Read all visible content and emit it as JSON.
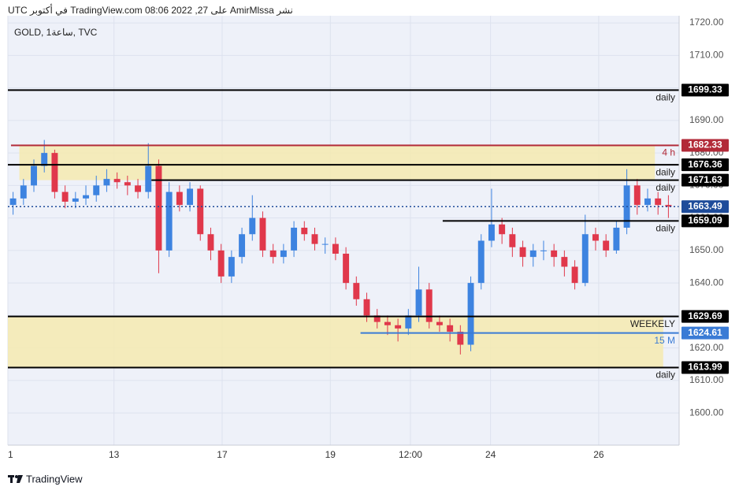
{
  "header": {
    "text": "نشر AmirMlssa على TradingView.com 08:06 2022 ,27 في أكتوبر UTC"
  },
  "footer": {
    "brand": "TradingView"
  },
  "chart_data": {
    "type": "candlestick",
    "title": "GOLD, 1ساعة, TVC",
    "up_color": "#3d83e0",
    "down_color": "#e0384b",
    "xlim": [
      0,
      64
    ],
    "xticks": [
      {
        "value": 0,
        "label": "1"
      },
      {
        "value": 10.2,
        "label": "13"
      },
      {
        "value": 20.6,
        "label": "17"
      },
      {
        "value": 31.0,
        "label": "19"
      },
      {
        "value": 38.7,
        "label": "12:00"
      },
      {
        "value": 46.4,
        "label": "24"
      },
      {
        "value": 56.8,
        "label": "26"
      }
    ],
    "ylim": [
      1590.1,
      1722.2
    ],
    "yticks": [
      {
        "value": 1720,
        "label": "1720.00"
      },
      {
        "value": 1710,
        "label": "1710.00"
      },
      {
        "value": 1700,
        "label": "1700.00"
      },
      {
        "value": 1690,
        "label": "1690.00"
      },
      {
        "value": 1680,
        "label": "1680.00"
      },
      {
        "value": 1670,
        "label": "1670.00"
      },
      {
        "value": 1660,
        "label": "1660.00"
      },
      {
        "value": 1650,
        "label": "1650.00"
      },
      {
        "value": 1640,
        "label": "1640.00"
      },
      {
        "value": 1630,
        "label": "1630.00"
      },
      {
        "value": 1620,
        "label": "1620.00"
      },
      {
        "value": 1610,
        "label": "1610.00"
      },
      {
        "value": 1600,
        "label": "1600.00"
      }
    ],
    "grid": true,
    "zones": [
      {
        "from": 1671.63,
        "to": 1682.33,
        "x": [
          1.1,
          62.2
        ],
        "color": "#f5eab0"
      },
      {
        "from": 1613.99,
        "to": 1629.69,
        "x": [
          0,
          63
        ],
        "color": "#f5eab0"
      }
    ],
    "levels": [
      {
        "value": 1699.33,
        "note": "daily",
        "color": "#000000",
        "start": 0
      },
      {
        "value": 1682.33,
        "note": "4 h",
        "color": "#b22a38",
        "start": 0.3
      },
      {
        "value": 1676.36,
        "note": "daily",
        "color": "#000000",
        "start": 0
      },
      {
        "value": 1671.63,
        "note": "daily",
        "color": "#000000",
        "start": 13.8
      },
      {
        "value": 1663.49,
        "color": "#1e4c9a",
        "start": 0,
        "dashed": true
      },
      {
        "value": 1659.09,
        "note": "daily",
        "color": "#000000",
        "start": 41.8
      },
      {
        "value": 1629.69,
        "note": "WEEKELY",
        "color": "#000000",
        "start": 0
      },
      {
        "value": 1624.61,
        "note": "15 M",
        "color": "#3a7bd5",
        "start": 33.9
      },
      {
        "value": 1613.99,
        "note": "daily",
        "color": "#000000",
        "start": 0
      }
    ],
    "candles": [
      [
        1664,
        1668,
        1661,
        1666
      ],
      [
        1666,
        1672,
        1664,
        1670
      ],
      [
        1670,
        1678,
        1668,
        1676
      ],
      [
        1676,
        1684,
        1674,
        1680
      ],
      [
        1680,
        1681,
        1666,
        1668
      ],
      [
        1668,
        1670,
        1663,
        1665
      ],
      [
        1665,
        1668,
        1663,
        1666
      ],
      [
        1666,
        1670,
        1664,
        1667
      ],
      [
        1667,
        1673,
        1665,
        1670
      ],
      [
        1670,
        1675,
        1668,
        1672
      ],
      [
        1672,
        1674,
        1669,
        1671
      ],
      [
        1671,
        1673,
        1667,
        1670
      ],
      [
        1670,
        1672,
        1666,
        1668
      ],
      [
        1668,
        1683,
        1666,
        1676
      ],
      [
        1676,
        1678,
        1643,
        1650
      ],
      [
        1650,
        1671,
        1648,
        1668
      ],
      [
        1668,
        1670,
        1662,
        1664
      ],
      [
        1664,
        1671,
        1662,
        1669
      ],
      [
        1669,
        1670,
        1653,
        1655
      ],
      [
        1655,
        1657,
        1647,
        1650
      ],
      [
        1650,
        1652,
        1640,
        1642
      ],
      [
        1642,
        1650,
        1640,
        1648
      ],
      [
        1648,
        1657,
        1646,
        1655
      ],
      [
        1655,
        1667,
        1653,
        1660
      ],
      [
        1660,
        1662,
        1648,
        1650
      ],
      [
        1650,
        1652,
        1646,
        1648
      ],
      [
        1648,
        1652,
        1646,
        1650
      ],
      [
        1650,
        1659,
        1648,
        1657
      ],
      [
        1657,
        1659,
        1653,
        1655
      ],
      [
        1655,
        1657,
        1650,
        1652
      ],
      [
        1652,
        1654,
        1649,
        1652
      ],
      [
        1652,
        1654,
        1647,
        1649
      ],
      [
        1649,
        1651,
        1638,
        1640
      ],
      [
        1640,
        1642,
        1633,
        1635
      ],
      [
        1635,
        1637,
        1628,
        1630
      ],
      [
        1630,
        1632,
        1626,
        1628
      ],
      [
        1628,
        1630,
        1624,
        1627
      ],
      [
        1627,
        1629,
        1622,
        1626
      ],
      [
        1626,
        1632,
        1624,
        1630
      ],
      [
        1630,
        1645,
        1628,
        1638
      ],
      [
        1638,
        1640,
        1626,
        1628
      ],
      [
        1628,
        1630,
        1625,
        1627
      ],
      [
        1627,
        1629,
        1622,
        1625
      ],
      [
        1625,
        1627,
        1618,
        1621
      ],
      [
        1621,
        1642,
        1619,
        1640
      ],
      [
        1640,
        1655,
        1638,
        1653
      ],
      [
        1653,
        1669,
        1651,
        1658
      ],
      [
        1658,
        1660,
        1652,
        1655
      ],
      [
        1655,
        1657,
        1648,
        1651
      ],
      [
        1651,
        1653,
        1645,
        1648
      ],
      [
        1648,
        1652,
        1645,
        1650
      ],
      [
        1650,
        1653,
        1647,
        1650
      ],
      [
        1650,
        1652,
        1645,
        1648
      ],
      [
        1648,
        1650,
        1642,
        1645
      ],
      [
        1645,
        1647,
        1638,
        1640
      ],
      [
        1640,
        1661,
        1639,
        1655
      ],
      [
        1655,
        1657,
        1650,
        1653
      ],
      [
        1653,
        1655,
        1648,
        1650
      ],
      [
        1650,
        1659,
        1649,
        1657
      ],
      [
        1657,
        1675,
        1655,
        1670
      ],
      [
        1670,
        1672,
        1661,
        1664
      ],
      [
        1664,
        1669,
        1662,
        1666
      ],
      [
        1666,
        1668,
        1661,
        1664
      ],
      [
        1664,
        1667,
        1660,
        1663.49
      ]
    ]
  }
}
